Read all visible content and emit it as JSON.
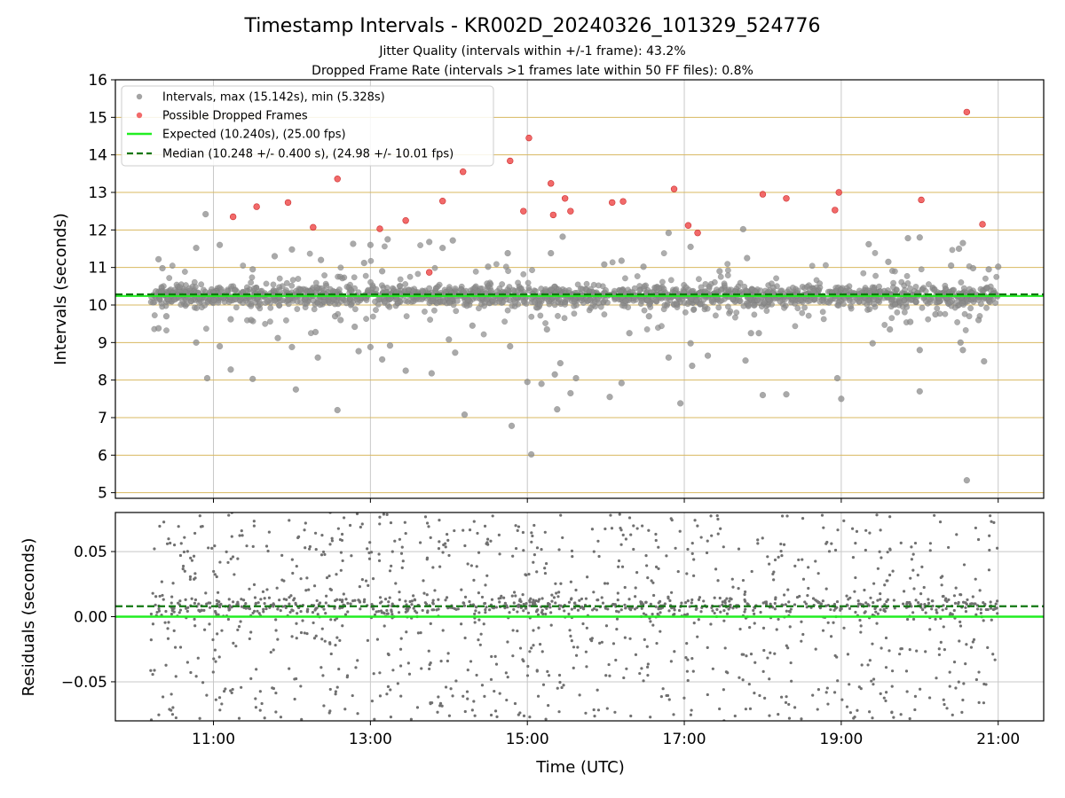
{
  "figure": {
    "title": "Timestamp Intervals - KR002D_20240326_101329_524776",
    "subtitle_1": "Jitter Quality (intervals within +/-1 frame): 43.2%",
    "subtitle_2": "Dropped Frame Rate (intervals >1 frames late within 50 FF files): 0.8%",
    "xlabel": "Time (UTC)"
  },
  "colors": {
    "interval_points": "#8c8c8c",
    "dropped_points": "#f05050",
    "expected_line": "#22ee22",
    "median_line": "#117711",
    "hgrid_top": "#d8b860",
    "grid": "#c8c8c8",
    "residual_points": "#707070"
  },
  "chart_data": [
    {
      "type": "scatter",
      "ylabel": "Intervals (seconds)",
      "ylim": [
        4.85,
        16.0
      ],
      "xlim": [
        9.75,
        21.58
      ],
      "x_unit": "hour (UTC)",
      "yticks": [
        "5",
        "6",
        "7",
        "8",
        "9",
        "10",
        "11",
        "12",
        "13",
        "14",
        "15",
        "16"
      ],
      "grid": "on",
      "legend": {
        "placement": "top-left",
        "entries": [
          "Intervals, max (15.142s), min (5.328s)",
          "Possible Dropped Frames",
          "Expected (10.240s), (25.00 fps)",
          "Median (10.248 +/- 0.400 s), (24.98 +/- 10.01 fps)"
        ]
      },
      "expected_value": 10.24,
      "median_value": 10.248,
      "intervals_max": 15.142,
      "intervals_min": 5.328,
      "series": [
        {
          "name": "Possible Dropped Frames",
          "points": [
            [
              11.25,
              12.35
            ],
            [
              11.55,
              12.62
            ],
            [
              11.95,
              12.73
            ],
            [
              12.27,
              12.07
            ],
            [
              12.58,
              13.36
            ],
            [
              13.12,
              12.03
            ],
            [
              13.45,
              12.25
            ],
            [
              13.75,
              10.87
            ],
            [
              13.92,
              12.77
            ],
            [
              14.18,
              13.55
            ],
            [
              14.78,
              13.84
            ],
            [
              14.95,
              12.5
            ],
            [
              15.02,
              14.45
            ],
            [
              15.3,
              13.24
            ],
            [
              15.33,
              12.4
            ],
            [
              15.48,
              12.84
            ],
            [
              15.55,
              12.5
            ],
            [
              16.08,
              12.73
            ],
            [
              16.22,
              12.76
            ],
            [
              16.87,
              13.09
            ],
            [
              17.05,
              12.12
            ],
            [
              17.17,
              11.92
            ],
            [
              18.0,
              12.95
            ],
            [
              18.3,
              12.84
            ],
            [
              18.92,
              12.53
            ],
            [
              18.97,
              13.0
            ],
            [
              20.02,
              12.8
            ],
            [
              20.6,
              15.14
            ],
            [
              20.8,
              12.15
            ]
          ]
        },
        {
          "name": "Intervals, max (15.142s), min (5.328s)",
          "outliers": [
            [
              10.3,
              11.22
            ],
            [
              10.35,
              10.98
            ],
            [
              10.3,
              9.38
            ],
            [
              10.4,
              9.7
            ],
            [
              10.78,
              11.52
            ],
            [
              10.78,
              9.0
            ],
            [
              10.92,
              8.05
            ],
            [
              10.9,
              12.42
            ],
            [
              11.08,
              11.6
            ],
            [
              11.08,
              8.9
            ],
            [
              11.22,
              8.28
            ],
            [
              11.22,
              9.62
            ],
            [
              11.5,
              10.95
            ],
            [
              11.5,
              8.03
            ],
            [
              11.48,
              9.6
            ],
            [
              11.78,
              11.3
            ],
            [
              11.82,
              9.12
            ],
            [
              12.0,
              11.48
            ],
            [
              12.05,
              7.75
            ],
            [
              12.0,
              8.88
            ],
            [
              12.3,
              9.28
            ],
            [
              12.33,
              8.6
            ],
            [
              12.37,
              11.2
            ],
            [
              12.55,
              9.7
            ],
            [
              12.58,
              7.2
            ],
            [
              12.62,
              9.6
            ],
            [
              12.78,
              11.63
            ],
            [
              12.8,
              9.42
            ],
            [
              12.85,
              8.77
            ],
            [
              12.92,
              11.12
            ],
            [
              13.0,
              11.6
            ],
            [
              13.0,
              8.88
            ],
            [
              13.15,
              10.9
            ],
            [
              13.15,
              8.55
            ],
            [
              13.22,
              11.75
            ],
            [
              13.25,
              8.92
            ],
            [
              13.45,
              8.25
            ],
            [
              13.75,
              11.68
            ],
            [
              13.78,
              8.18
            ],
            [
              13.92,
              11.52
            ],
            [
              14.0,
              9.08
            ],
            [
              14.08,
              8.73
            ],
            [
              14.05,
              11.72
            ],
            [
              14.2,
              7.08
            ],
            [
              14.3,
              9.45
            ],
            [
              14.5,
              11.02
            ],
            [
              14.75,
              11.38
            ],
            [
              14.78,
              8.9
            ],
            [
              14.8,
              6.78
            ],
            [
              15.0,
              7.95
            ],
            [
              15.05,
              6.02
            ],
            [
              15.18,
              7.9
            ],
            [
              15.25,
              9.35
            ],
            [
              15.3,
              11.38
            ],
            [
              15.35,
              8.15
            ],
            [
              15.38,
              7.22
            ],
            [
              15.42,
              8.45
            ],
            [
              15.45,
              11.82
            ],
            [
              15.55,
              7.65
            ],
            [
              15.62,
              8.05
            ],
            [
              15.98,
              11.08
            ],
            [
              16.05,
              7.55
            ],
            [
              16.2,
              11.18
            ],
            [
              16.2,
              7.92
            ],
            [
              16.3,
              9.25
            ],
            [
              16.48,
              11.02
            ],
            [
              16.55,
              9.7
            ],
            [
              16.8,
              11.92
            ],
            [
              16.8,
              8.6
            ],
            [
              16.95,
              7.38
            ],
            [
              17.08,
              11.55
            ],
            [
              17.08,
              8.98
            ],
            [
              17.1,
              8.38
            ],
            [
              17.3,
              8.65
            ],
            [
              17.45,
              10.9
            ],
            [
              17.75,
              12.02
            ],
            [
              17.78,
              8.52
            ],
            [
              17.8,
              11.25
            ],
            [
              17.85,
              9.25
            ],
            [
              17.95,
              9.25
            ],
            [
              18.0,
              7.6
            ],
            [
              18.3,
              7.62
            ],
            [
              18.95,
              8.05
            ],
            [
              19.0,
              7.5
            ],
            [
              19.35,
              11.62
            ],
            [
              19.4,
              8.98
            ],
            [
              19.6,
              11.15
            ],
            [
              19.62,
              9.35
            ],
            [
              19.85,
              11.78
            ],
            [
              19.88,
              9.55
            ],
            [
              20.0,
              11.8
            ],
            [
              20.0,
              7.7
            ],
            [
              20.0,
              8.8
            ],
            [
              20.2,
              9.75
            ],
            [
              20.4,
              11.05
            ],
            [
              20.5,
              11.5
            ],
            [
              20.52,
              9.0
            ],
            [
              20.55,
              11.65
            ],
            [
              20.55,
              8.8
            ],
            [
              20.6,
              5.33
            ],
            [
              20.68,
              10.98
            ],
            [
              20.75,
              9.6
            ],
            [
              20.82,
              8.5
            ],
            [
              20.88,
              10.95
            ],
            [
              21.0,
              11.02
            ]
          ],
          "dense_band": {
            "x_range": [
              10.2,
              21.0
            ],
            "center": 10.24,
            "spread": 0.35
          }
        }
      ]
    },
    {
      "type": "scatter",
      "ylabel": "Residuals (seconds)",
      "ylim": [
        -0.08,
        0.08
      ],
      "xlim": [
        9.75,
        21.58
      ],
      "yticks": [
        "0.05",
        "0.00",
        "−0.05"
      ],
      "xticks": [
        "11:00",
        "13:00",
        "15:00",
        "17:00",
        "19:00",
        "21:00"
      ],
      "grid": "on",
      "expected_value": 0.0,
      "median_value": 0.008,
      "series": [
        {
          "name": "",
          "distribution": {
            "x_range": [
              10.2,
              21.0
            ],
            "y_range": [
              -0.08,
              0.08
            ],
            "cluster_center": 0.008
          }
        }
      ]
    }
  ]
}
